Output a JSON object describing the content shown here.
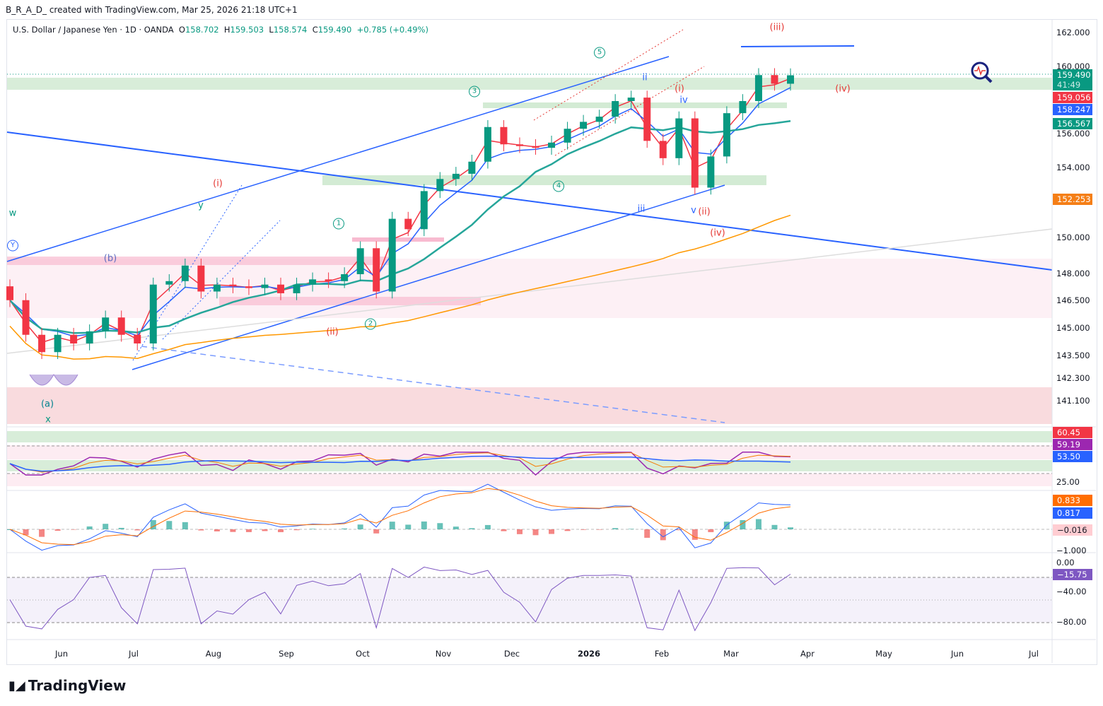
{
  "header": {
    "credit": "B_R_A_D_ created with TradingView.com, Mar 25, 2026 21:18 UTC+1"
  },
  "legend": {
    "symbol": "U.S. Dollar / Japanese Yen · 1D · OANDA",
    "o_label": "O",
    "o": "158.702",
    "h_label": "H",
    "h": "159.503",
    "l_label": "L",
    "l": "158.574",
    "c_label": "C",
    "c": "159.490",
    "change": "+0.785 (+0.49%)"
  },
  "price_axis": [
    "162.000",
    "160.000",
    "156.000",
    "154.000",
    "150.000",
    "148.000",
    "146.500",
    "145.000",
    "143.500",
    "142.300",
    "141.100"
  ],
  "price_tags": [
    {
      "value": "159.490",
      "sub": "41:49",
      "color": "#089981"
    },
    {
      "value": "159.056",
      "color": "#f23645"
    },
    {
      "value": "158.247",
      "color": "#2962ff"
    },
    {
      "value": "156.567",
      "color": "#089981"
    },
    {
      "value": "152.253",
      "color": "#f57f17"
    }
  ],
  "rsi_pane": {
    "tags": [
      {
        "value": "60.45",
        "color": "#f23645"
      },
      {
        "value": "59.19",
        "color": "#9c27b0"
      },
      {
        "value": "53.50",
        "color": "#2962ff"
      }
    ],
    "axis": "25.00"
  },
  "macd_pane": {
    "tags": [
      {
        "value": "0.833",
        "color": "#ff6d00"
      },
      {
        "value": "0.817",
        "color": "#2962ff"
      }
    ],
    "hist": "−0.016",
    "axis": "−1.000"
  },
  "wr_pane": {
    "axis_top": "0.00",
    "tag": "−15.75",
    "axis": [
      "−40.00",
      "−80.00"
    ]
  },
  "time_axis": [
    "Jun",
    "Jul",
    "Aug",
    "Sep",
    "Oct",
    "Nov",
    "Dec",
    "2026",
    "Feb",
    "Mar",
    "Apr",
    "May",
    "Jun",
    "Jul"
  ],
  "waves": {
    "iii_big": "(iii)",
    "iv_big": "(iv)",
    "i_1": "(i)",
    "ii_1": "(ii)",
    "b": "(b)",
    "a": "(a)",
    "w": "w",
    "x": "x",
    "y": "y",
    "Y": "Y",
    "c1": "1",
    "c2": "2",
    "c3": "3",
    "c4": "4",
    "c5": "5",
    "ii_s": "ii",
    "iii_s": "iii",
    "iv_s": "iv",
    "v_s": "v",
    "i_2": "(i)",
    "ii_2": "(ii)",
    "iv_2": "(iv)"
  },
  "footer": {
    "logo": "TradingView"
  },
  "chart_data": {
    "type": "candlestick",
    "title": "U.S. Dollar / Japanese Yen · 1D · OANDA",
    "interval": "weekly-sampled",
    "closes": [
      146.5,
      144.5,
      143.5,
      144.5,
      144.0,
      144.7,
      145.5,
      144.5,
      144.0,
      147.4,
      147.6,
      148.5,
      147.0,
      147.4,
      147.3,
      147.2,
      147.4,
      146.9,
      147.4,
      147.7,
      147.6,
      148.0,
      149.5,
      147.0,
      151.2,
      150.6,
      152.8,
      153.5,
      153.8,
      154.5,
      156.5,
      155.5,
      155.4,
      155.3,
      155.6,
      156.4,
      156.8,
      157.1,
      158.0,
      158.2,
      155.7,
      154.7,
      157.0,
      153.0,
      154.8,
      157.3,
      158.0,
      159.5,
      159.0,
      159.49
    ],
    "ylim": [
      140.5,
      162.5
    ],
    "indicators": [
      "EMA fast",
      "EMA slow",
      "SMA 50",
      "SMA 200",
      "RSI",
      "MACD",
      "Williams %R"
    ],
    "last": {
      "close": 159.49,
      "ema_fast": 159.056,
      "ema_slow": 158.247,
      "sma50": 156.567,
      "sma200": 152.253,
      "rsi": 59.19,
      "rsi_ma": 53.5,
      "macd": 0.817,
      "signal": 0.833,
      "hist": -0.016,
      "wr": -15.75
    }
  }
}
